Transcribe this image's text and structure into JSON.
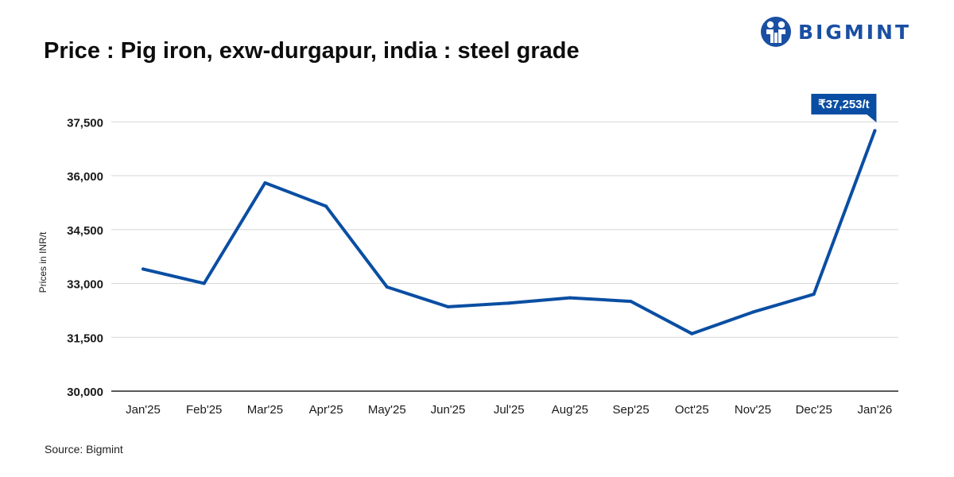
{
  "title": "Price : Pig iron, exw-durgapur, india : steel grade",
  "brand": "BIGMINT",
  "source": "Source: Bigmint",
  "colors": {
    "line": "#0a4ea3",
    "brand": "#1a4fa3",
    "grid": "#d6d6d6",
    "axis": "#222222"
  },
  "chart_data": {
    "type": "line",
    "title": "Price : Pig iron, exw-durgapur, india : steel grade",
    "xlabel": "",
    "ylabel": "Prices in INR/t",
    "ylim": [
      30000,
      38500
    ],
    "yticks": [
      30000,
      31500,
      33000,
      34500,
      36000,
      37500
    ],
    "ytick_labels": [
      "30,000",
      "31,500",
      "33,000",
      "34,500",
      "36,000",
      "37,500"
    ],
    "grid": true,
    "categories": [
      "Jan'25",
      "Feb'25",
      "Mar'25",
      "Apr'25",
      "May'25",
      "Jun'25",
      "Jul'25",
      "Aug'25",
      "Sep'25",
      "Oct'25",
      "Nov'25",
      "Dec'25",
      "Jan'26"
    ],
    "series": [
      {
        "values": [
          33400,
          33000,
          35800,
          35150,
          32900,
          32350,
          32450,
          32600,
          32500,
          31600,
          32200,
          32700,
          37253
        ]
      }
    ],
    "annotation": {
      "text": "₹37,253/t",
      "index": 12
    }
  }
}
